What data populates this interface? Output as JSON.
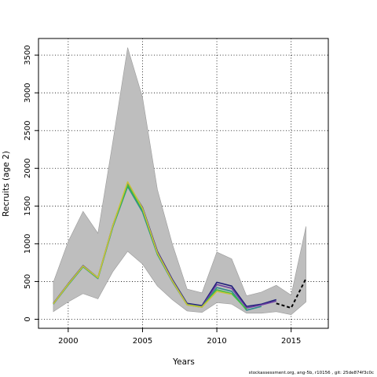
{
  "chart_data": {
    "type": "line",
    "xlabel": "Years",
    "ylabel": "Recruits (age 2)",
    "xlim": [
      1998,
      2017.5
    ],
    "ylim": [
      -120,
      3720
    ],
    "x_ticks": [
      2000,
      2005,
      2010,
      2015
    ],
    "y_ticks": [
      0,
      500,
      1000,
      1500,
      2000,
      2500,
      3000,
      3500
    ],
    "grid": true,
    "interval": {
      "x": [
        1999,
        2000,
        2001,
        2002,
        2003,
        2004,
        2005,
        2006,
        2007,
        2008,
        2009,
        2010,
        2011,
        2012,
        2013,
        2014,
        2015,
        2016
      ],
      "upper": [
        490,
        1030,
        1430,
        1140,
        2350,
        3600,
        2940,
        1720,
        1000,
        400,
        350,
        890,
        800,
        310,
        360,
        450,
        320,
        1230
      ],
      "lower": [
        100,
        230,
        340,
        270,
        630,
        900,
        730,
        440,
        260,
        110,
        90,
        220,
        200,
        80,
        80,
        100,
        60,
        230
      ],
      "color": "#bebebe"
    },
    "series": [
      {
        "color": "#1f1f7a",
        "x": [
          1999,
          2000,
          2001,
          2002,
          2003,
          2004,
          2005,
          2006,
          2007,
          2008,
          2009,
          2010,
          2011,
          2012,
          2013,
          2014
        ],
        "values": [
          210,
          470,
          710,
          550,
          1240,
          1800,
          1480,
          900,
          530,
          210,
          180,
          490,
          440,
          170,
          200,
          260
        ]
      },
      {
        "color": "#6b3fa0",
        "x": [
          1999,
          2000,
          2001,
          2002,
          2003,
          2004,
          2005,
          2006,
          2007,
          2008,
          2009,
          2010,
          2011,
          2012,
          2013,
          2014
        ],
        "values": [
          210,
          465,
          705,
          548,
          1235,
          1790,
          1470,
          890,
          520,
          200,
          170,
          460,
          410,
          150,
          190,
          240
        ]
      },
      {
        "color": "#2e8b8b",
        "x": [
          1999,
          2000,
          2001,
          2002,
          2003,
          2004,
          2005,
          2006,
          2007,
          2008,
          2009,
          2010,
          2011,
          2012,
          2013
        ],
        "values": [
          200,
          455,
          695,
          540,
          1220,
          1760,
          1420,
          860,
          500,
          190,
          160,
          420,
          370,
          120,
          170
        ]
      },
      {
        "color": "#3fbf3f",
        "x": [
          1999,
          2000,
          2001,
          2002,
          2003,
          2004,
          2005,
          2006,
          2007,
          2008,
          2009,
          2010,
          2011,
          2012
        ],
        "values": [
          205,
          460,
          700,
          545,
          1230,
          1780,
          1450,
          870,
          510,
          195,
          165,
          390,
          340,
          130
        ]
      },
      {
        "color": "#c8c23a",
        "x": [
          1999,
          2000,
          2001,
          2002,
          2003,
          2004,
          2005,
          2006,
          2007,
          2008,
          2009,
          2010,
          2011
        ],
        "values": [
          205,
          465,
          705,
          550,
          1240,
          1820,
          1470,
          880,
          510,
          190,
          160,
          370,
          330
        ]
      },
      {
        "color": "#000000",
        "dashed": true,
        "x": [
          2014,
          2015,
          2016
        ],
        "values": [
          210,
          150,
          540
        ]
      }
    ]
  },
  "footer": {
    "text": "stockassessment.org, ang-5b, r10156 ,  git: 25de874f3c0c"
  }
}
